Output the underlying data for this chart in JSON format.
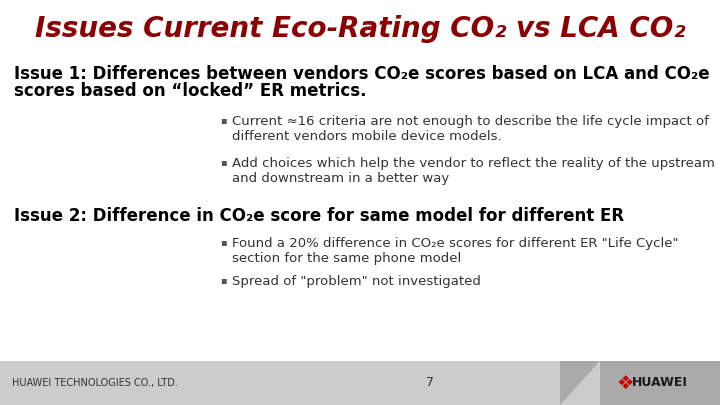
{
  "title_color": "#8B0000",
  "bg_color": "#FFFFFF",
  "footer_left_bg": "#CCCCCC",
  "footer_right_bg": "#AAAAAA",
  "footer_text": "HUAWEI TECHNOLOGIES CO., LTD.",
  "footer_page": "7",
  "footer_text_color": "#333333",
  "issue1_heading_line1": "Issue 1: Differences between vendors CO₂e scores based on LCA and CO₂e",
  "issue1_heading_line2": "scores based on “locked” ER metrics.",
  "issue1_bullet1_line1": "Current ≈16 criteria are not enough to describe the life cycle impact of",
  "issue1_bullet1_line2": "different vendors mobile device models.",
  "issue1_bullet2_line1": "Add choices which help the vendor to reflect the reality of the upstream",
  "issue1_bullet2_line2": "and downstream in a better way",
  "issue2_heading": "Issue 2: Difference in CO₂e score for same model for different ER",
  "issue2_bullet1_line1": "Found a 20% difference in CO₂e scores for different ER \"Life Cycle\"",
  "issue2_bullet1_line2": "section for the same phone model",
  "issue2_bullet2": "Spread of \"problem\" not investigated",
  "heading_color": "#000000",
  "bullet_color": "#333333",
  "title_fontsize": 20,
  "heading_fontsize": 12,
  "bullet_fontsize": 9.5,
  "footer_fontsize": 7
}
